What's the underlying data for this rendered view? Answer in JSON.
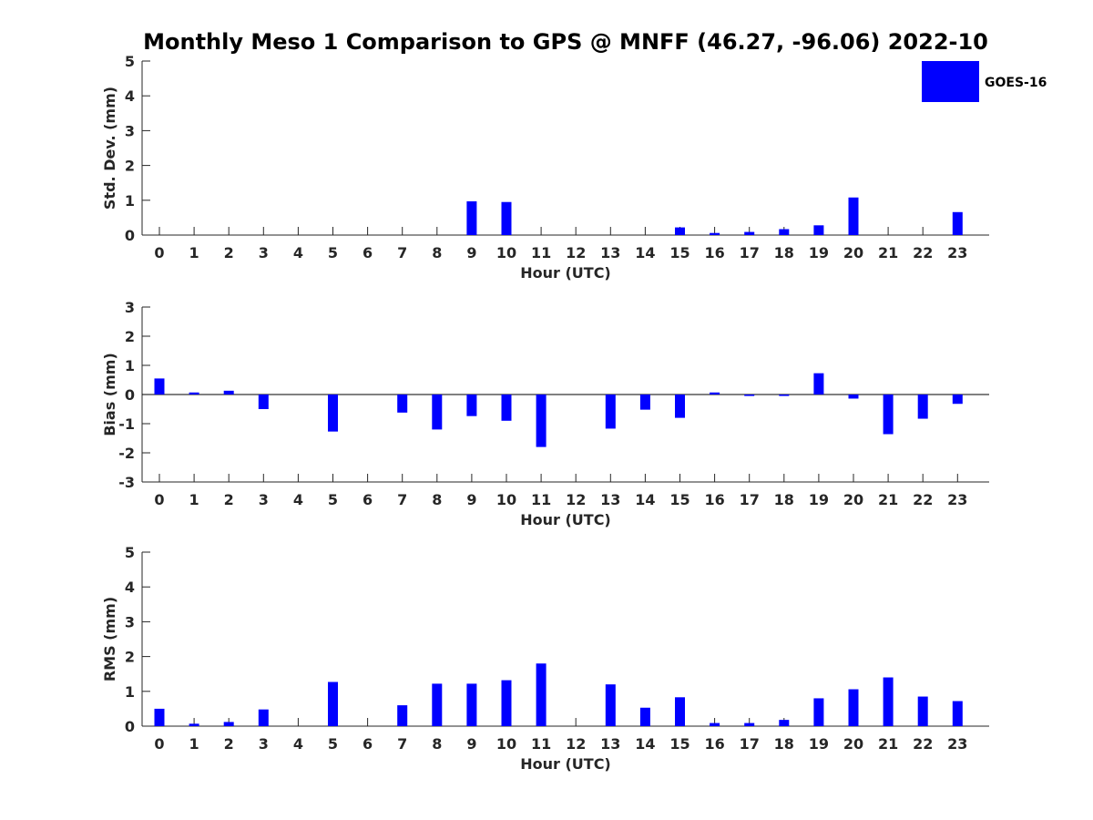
{
  "title": "Monthly Meso 1 Comparison to GPS @ MNFF (46.27, -96.06) 2022-10",
  "legend": {
    "label": "GOES-16",
    "color": "#0000ff",
    "placement": "top-right"
  },
  "chart_data": [
    {
      "type": "bar",
      "xlabel": "Hour (UTC)",
      "ylabel": "Std. Dev. (mm)",
      "ylim": [
        0,
        5
      ],
      "yticks": [
        0,
        1,
        2,
        3,
        4,
        5
      ],
      "categories": [
        "0",
        "1",
        "2",
        "3",
        "4",
        "5",
        "6",
        "7",
        "8",
        "9",
        "10",
        "11",
        "12",
        "13",
        "14",
        "15",
        "16",
        "17",
        "18",
        "19",
        "20",
        "21",
        "22",
        "23"
      ],
      "series": [
        {
          "name": "GOES-16",
          "values": [
            0,
            0,
            0,
            0,
            0,
            0,
            0,
            0,
            0,
            0.97,
            0.95,
            0,
            0,
            0,
            0,
            0.22,
            0.06,
            0.09,
            0.17,
            0.28,
            1.08,
            0,
            0,
            0.66
          ]
        }
      ]
    },
    {
      "type": "bar",
      "xlabel": "Hour (UTC)",
      "ylabel": "Bias (mm)",
      "ylim": [
        -3,
        3
      ],
      "yticks": [
        -3,
        -2,
        -1,
        0,
        1,
        2,
        3
      ],
      "categories": [
        "0",
        "1",
        "2",
        "3",
        "4",
        "5",
        "6",
        "7",
        "8",
        "9",
        "10",
        "11",
        "12",
        "13",
        "14",
        "15",
        "16",
        "17",
        "18",
        "19",
        "20",
        "21",
        "22",
        "23"
      ],
      "series": [
        {
          "name": "GOES-16",
          "values": [
            0.55,
            0.07,
            0.13,
            -0.5,
            0,
            -1.27,
            0,
            -0.62,
            -1.2,
            -0.74,
            -0.9,
            -1.8,
            0,
            -1.17,
            -0.52,
            -0.8,
            0.07,
            -0.05,
            -0.05,
            0.73,
            -0.14,
            -1.36,
            -0.83,
            -0.32
          ]
        }
      ]
    },
    {
      "type": "bar",
      "xlabel": "Hour (UTC)",
      "ylabel": "RMS (mm)",
      "ylim": [
        0,
        5
      ],
      "yticks": [
        0,
        1,
        2,
        3,
        4,
        5
      ],
      "categories": [
        "0",
        "1",
        "2",
        "3",
        "4",
        "5",
        "6",
        "7",
        "8",
        "9",
        "10",
        "11",
        "12",
        "13",
        "14",
        "15",
        "16",
        "17",
        "18",
        "19",
        "20",
        "21",
        "22",
        "23"
      ],
      "series": [
        {
          "name": "GOES-16",
          "values": [
            0.5,
            0.07,
            0.12,
            0.48,
            0,
            1.27,
            0,
            0.6,
            1.22,
            1.22,
            1.32,
            1.8,
            0,
            1.2,
            0.53,
            0.83,
            0.09,
            0.09,
            0.18,
            0.8,
            1.06,
            1.4,
            0.85,
            0.72
          ]
        }
      ]
    }
  ]
}
